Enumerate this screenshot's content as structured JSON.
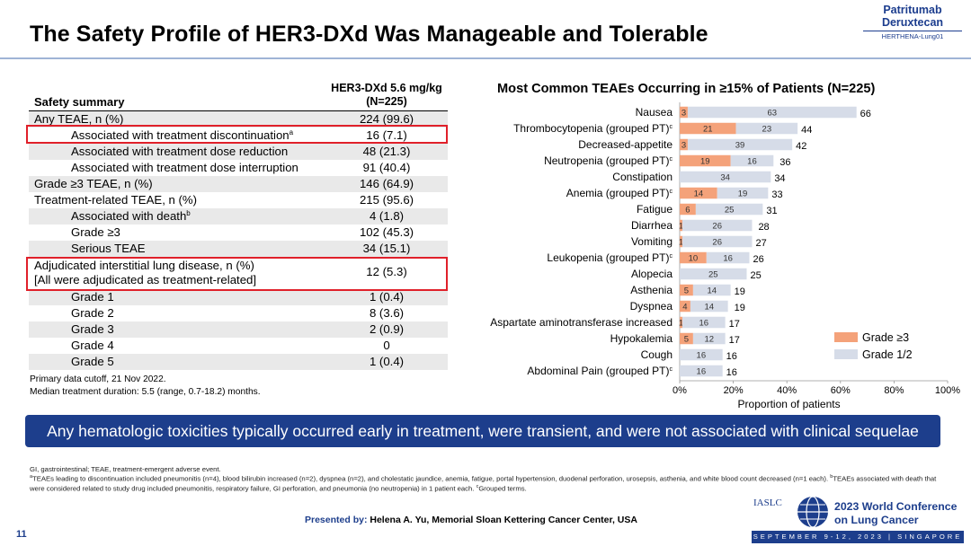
{
  "slide": {
    "title": "The Safety Profile of HER3-DXd Was Manageable and Tolerable",
    "brand": {
      "line1": "Patritumab",
      "line2": "Deruxtecan",
      "line3": "HERTHENA-Lung01"
    },
    "page_number": "11"
  },
  "table": {
    "header_left": "Safety summary",
    "header_right_line1": "HER3-DXd 5.6 mg/kg",
    "header_right_line2": "(N=225)",
    "rows": [
      {
        "label": "Any TEAE, n (%)",
        "value": "224 (99.6)"
      },
      {
        "label": "Associated with treatment discontinuation",
        "sup": "a",
        "value": "16 (7.1)"
      },
      {
        "label": "Associated with treatment dose reduction",
        "value": "48 (21.3)"
      },
      {
        "label": "Associated with treatment dose interruption",
        "value": "91 (40.4)"
      },
      {
        "label": "Grade ≥3 TEAE, n (%)",
        "value": "146 (64.9)"
      },
      {
        "label": "Treatment-related TEAE, n (%)",
        "value": "215 (95.6)"
      },
      {
        "label": "Associated with death",
        "sup": "b",
        "value": "4 (1.8)"
      },
      {
        "label": "Grade ≥3",
        "value": "102 (45.3)"
      },
      {
        "label": "Serious TEAE",
        "value": "34 (15.1)"
      },
      {
        "label": "Adjudicated interstitial lung disease, n (%)",
        "label2": "[All were adjudicated as treatment-related]",
        "value": "12 (5.3)"
      },
      {
        "label": "Grade 1",
        "value": "1 (0.4)"
      },
      {
        "label": "Grade 2",
        "value": "8 (3.6)"
      },
      {
        "label": "Grade 3",
        "value": "2 (0.9)"
      },
      {
        "label": "Grade 4",
        "value": "0"
      },
      {
        "label": "Grade 5",
        "value": "1 (0.4)"
      }
    ],
    "note1": "Primary data cutoff, 21 Nov 2022.",
    "note2": "Median treatment duration: 5.5 (range, 0.7-18.2) months."
  },
  "chart_data": {
    "type": "bar",
    "orientation": "horizontal",
    "stacked": true,
    "title": "Most Common TEAEs Occurring in ≥15% of Patients (N=225)",
    "xlabel": "Proportion of patients",
    "xlim": [
      0,
      100
    ],
    "xticks": [
      "0%",
      "20%",
      "40%",
      "60%",
      "80%",
      "100%"
    ],
    "categories": [
      {
        "name": "Nausea",
        "sup": ""
      },
      {
        "name": "Thrombocytopenia (grouped PT)",
        "sup": "c"
      },
      {
        "name": "Decreased-appetite",
        "sup": ""
      },
      {
        "name": "Neutropenia (grouped PT)",
        "sup": "c"
      },
      {
        "name": "Constipation",
        "sup": ""
      },
      {
        "name": "Anemia (grouped PT)",
        "sup": "c"
      },
      {
        "name": "Fatigue",
        "sup": ""
      },
      {
        "name": "Diarrhea",
        "sup": ""
      },
      {
        "name": "Vomiting",
        "sup": ""
      },
      {
        "name": "Leukopenia (grouped PT)",
        "sup": "c"
      },
      {
        "name": "Alopecia",
        "sup": ""
      },
      {
        "name": "Asthenia",
        "sup": ""
      },
      {
        "name": "Dyspnea",
        "sup": ""
      },
      {
        "name": "Aspartate aminotransferase increased",
        "sup": ""
      },
      {
        "name": "Hypokalemia",
        "sup": ""
      },
      {
        "name": "Cough",
        "sup": ""
      },
      {
        "name": "Abdominal Pain (grouped PT)",
        "sup": "c"
      }
    ],
    "series": [
      {
        "name": "Grade ≥3",
        "color": "#f4a27a",
        "values": [
          3,
          21,
          3,
          19,
          0,
          14,
          6,
          1,
          1,
          10,
          0,
          5,
          4,
          1,
          5,
          0,
          0
        ]
      },
      {
        "name": "Grade 1/2",
        "color": "#d6dce8",
        "values": [
          63,
          23,
          39,
          16,
          34,
          19,
          25,
          26,
          26,
          16,
          25,
          14,
          14,
          16,
          12,
          16,
          16
        ]
      }
    ],
    "totals": [
      66,
      44,
      42,
      36,
      34,
      33,
      31,
      28,
      27,
      26,
      25,
      19,
      19,
      17,
      17,
      16,
      16
    ]
  },
  "banner": "Any hematologic toxicities typically occurred early in treatment, were transient, and were not associated with clinical sequelae",
  "footnotes": {
    "abbr": "GI, gastrointestinal; TEAE, treatment-emergent adverse event.",
    "a_mark": "a",
    "a_text": "TEAEs leading to discontinuation included pneumonitis (n=4), blood bilirubin increased (n=2), dyspnea (n=2), and cholestatic jaundice, anemia, fatigue, portal hypertension, duodenal perforation, urosepsis, asthenia, and white blood count decreased (n=1 each).",
    "b_mark": "b",
    "b_text": "TEAEs associated with death that were considered related to study drug included pneumonitis, respiratory failure, GI perforation, and pneumonia (no neutropenia) in 1 patient each.",
    "c_mark": "c",
    "c_text": "Grouped terms."
  },
  "footer": {
    "presenter_label": "Presented by:",
    "presenter_name": "Helena A. Yu, Memorial Sloan Kettering Cancer Center, USA",
    "iaslc": "IASLC",
    "conf_line1": "2023 World Conference",
    "conf_line2": "on Lung Cancer",
    "conf_dates": "SEPTEMBER 9-12, 2023 | SINGAPORE"
  }
}
